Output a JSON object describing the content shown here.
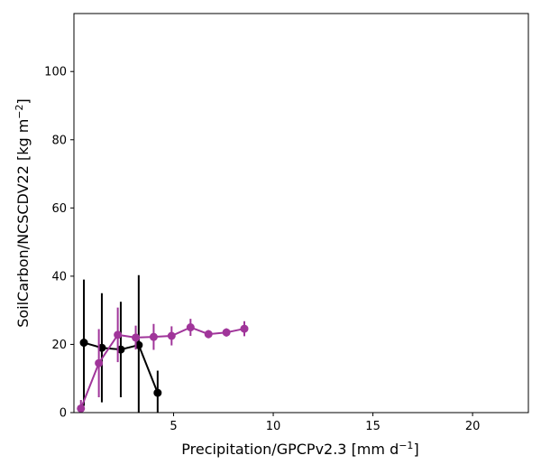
{
  "chart_data": {
    "type": "line",
    "xlabel": "Precipitation/GPCPv2.3 [mm d",
    "xlabel_sup": "−1",
    "xlabel_end": "]",
    "ylabel": "SoilCarbon/NCSCDV22 [kg m",
    "ylabel_sup": "−2",
    "ylabel_end": "]",
    "xlim": [
      0,
      22.8
    ],
    "ylim": [
      0,
      117
    ],
    "xticks": [
      5,
      10,
      15,
      20
    ],
    "yticks": [
      0,
      20,
      40,
      60,
      80,
      100
    ],
    "grid": false,
    "series": [
      {
        "color": "#000000",
        "x": [
          0.5,
          1.4,
          2.35,
          3.25,
          4.2
        ],
        "y": [
          20.5,
          19.0,
          18.5,
          19.8,
          5.8
        ],
        "yerr": [
          18.5,
          16.0,
          14.0,
          20.5,
          6.5
        ]
      },
      {
        "color": "#a0359a",
        "x": [
          0.35,
          1.25,
          2.2,
          3.1,
          4.0,
          4.9,
          5.85,
          6.75,
          7.65,
          8.55
        ],
        "y": [
          1.2,
          14.5,
          22.8,
          22.0,
          22.2,
          22.5,
          25.0,
          23.0,
          23.5,
          24.6
        ],
        "yerr": [
          2.5,
          10.0,
          8.0,
          3.5,
          3.8,
          2.8,
          2.5,
          1.2,
          1.2,
          2.2
        ]
      }
    ]
  }
}
